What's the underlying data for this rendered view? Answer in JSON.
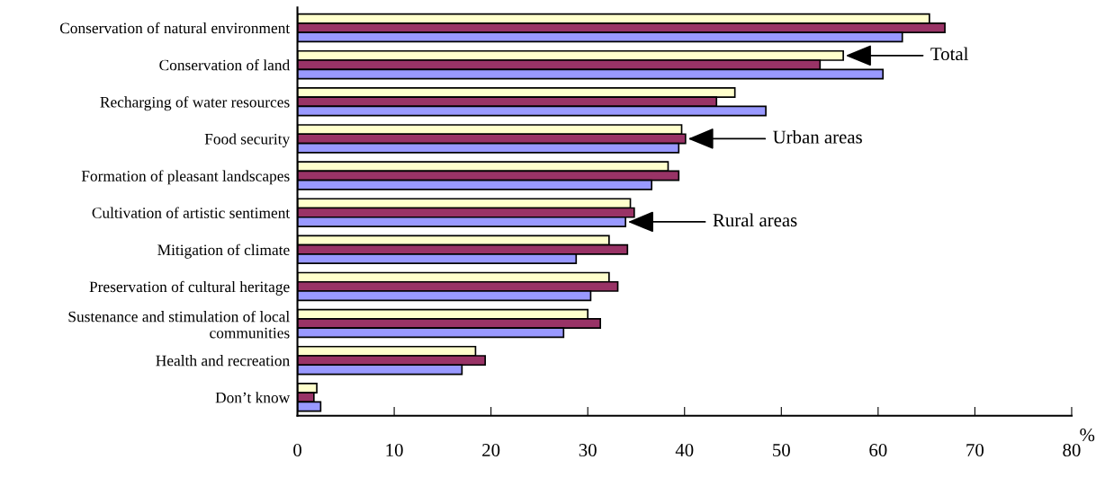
{
  "chart_data": {
    "type": "bar",
    "orientation": "horizontal",
    "xlabel": "%",
    "categories": [
      "Conservation of natural environment",
      "Conservation of land",
      "Recharging of water resources",
      "Food security",
      "Formation of pleasant landscapes",
      "Cultivation of artistic sentiment",
      "Mitigation of climate",
      "Preservation of cultural heritage",
      "Sustenance and stimulation of local\ncommunities",
      "Health and recreation",
      "Don’t know"
    ],
    "series": [
      {
        "name": "Total",
        "color": "#ffffcc",
        "values": [
          65.3,
          56.4,
          45.2,
          39.7,
          38.3,
          34.4,
          32.2,
          32.2,
          30.0,
          18.4,
          2.0
        ]
      },
      {
        "name": "Urban areas",
        "color": "#993366",
        "values": [
          66.9,
          54.0,
          43.3,
          40.1,
          39.4,
          34.8,
          34.1,
          33.1,
          31.3,
          19.4,
          1.7
        ]
      },
      {
        "name": "Rural areas",
        "color": "#9999ff",
        "values": [
          62.5,
          60.5,
          48.4,
          39.4,
          36.6,
          33.9,
          28.8,
          30.3,
          27.5,
          17.0,
          2.4
        ]
      }
    ],
    "xlim": [
      0,
      80
    ],
    "xticks": [
      0,
      10,
      20,
      30,
      40,
      50,
      60,
      70,
      80
    ],
    "grid": false,
    "legend": "right"
  }
}
